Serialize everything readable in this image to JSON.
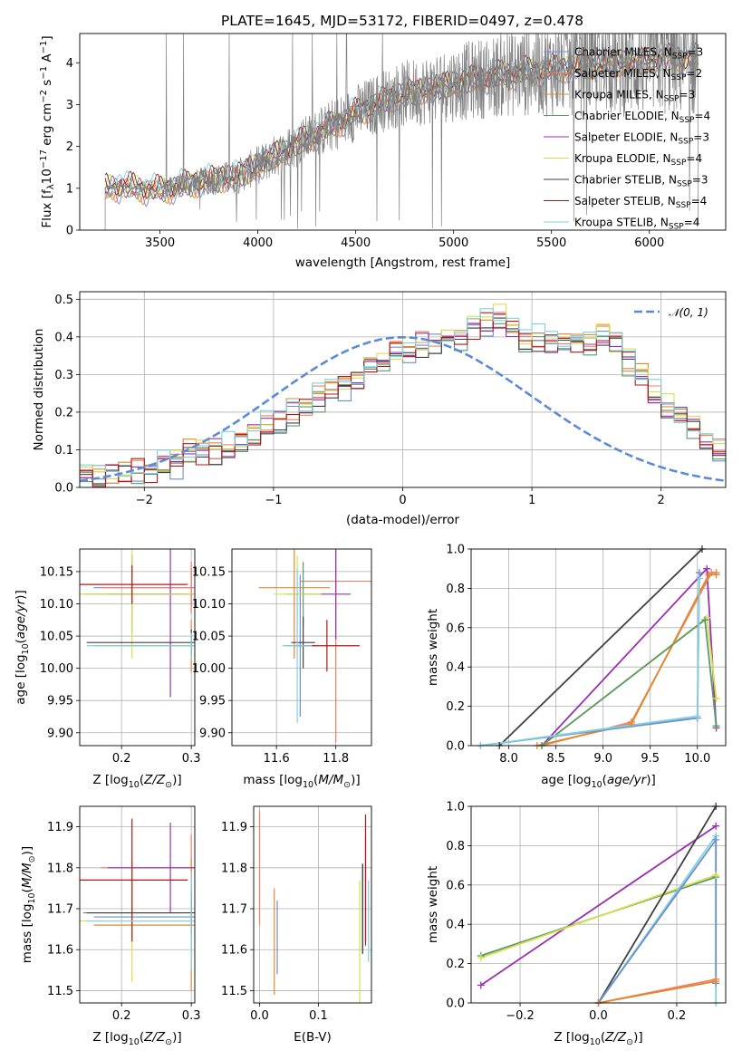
{
  "title": "PLATE=1645, MJD=53172, FIBERID=0497, z=0.478",
  "colors": {
    "Chabrier MILES": "#6e8ecf",
    "Salpeter MILES": "#f08060",
    "Kroupa MILES": "#e08a30",
    "Chabrier ELODIE": "#5a9a6a",
    "Salpeter ELODIE": "#9a30b0",
    "Kroupa ELODIE": "#d6e04a",
    "Chabrier STELIB": "#404040",
    "Salpeter STELIB": "#b01818",
    "Kroupa STELIB": "#80d0e0",
    "gaussian": "#5b8bd6",
    "data": "#808080"
  },
  "legend_spectrum": [
    {
      "model": "Chabrier MILES",
      "label": "Chabrier MILES, N",
      "sub": "SSP",
      "tail": "=3"
    },
    {
      "model": "Salpeter MILES",
      "label": "Salpeter MILES, N",
      "sub": "SSP",
      "tail": "=2"
    },
    {
      "model": "Kroupa MILES",
      "label": "Kroupa MILES, N",
      "sub": "SSP",
      "tail": "=3"
    },
    {
      "model": "Chabrier ELODIE",
      "label": "Chabrier ELODIE, N",
      "sub": "SSP",
      "tail": "=4"
    },
    {
      "model": "Salpeter ELODIE",
      "label": "Salpeter ELODIE, N",
      "sub": "SSP",
      "tail": "=3"
    },
    {
      "model": "Kroupa ELODIE",
      "label": "Kroupa ELODIE, N",
      "sub": "SSP",
      "tail": "=4"
    },
    {
      "model": "Chabrier STELIB",
      "label": "Chabrier STELIB, N",
      "sub": "SSP",
      "tail": "=3"
    },
    {
      "model": "Salpeter STELIB",
      "label": "Salpeter STELIB, N",
      "sub": "SSP",
      "tail": "=4"
    },
    {
      "model": "Kroupa STELIB",
      "label": "Kroupa STELIB, N",
      "sub": "SSP",
      "tail": "=4"
    }
  ],
  "legend_hist": "𝒩(0, 1)",
  "chart_data": [
    {
      "id": "spectrum",
      "type": "line",
      "xlabel": "wavelength [Angstrom, rest frame]",
      "ylabel": "Flux [f_λ 10^-17 erg cm^-2 s^-1 A^-1]",
      "xlim": [
        3090,
        6390
      ],
      "ylim": [
        0,
        4.7
      ],
      "xticks": [
        3500,
        4000,
        4500,
        5000,
        5500,
        6000
      ],
      "yticks": [
        0,
        1,
        2,
        3,
        4
      ],
      "grid": false,
      "legend": "top-right",
      "continuum_points": {
        "x": [
          3220,
          3300,
          3500,
          3700,
          3900,
          4100,
          4300,
          4500,
          4700,
          4900,
          5100,
          5300,
          5500,
          5700,
          5900,
          6100,
          6250
        ],
        "y": [
          1.0,
          1.05,
          0.95,
          1.15,
          1.3,
          1.8,
          2.3,
          2.8,
          3.2,
          3.4,
          3.6,
          3.75,
          3.85,
          3.95,
          4.0,
          4.1,
          4.1
        ]
      },
      "data_start": 3220,
      "data_end": 6250
    },
    {
      "id": "histogram",
      "type": "histogram",
      "xlabel": "(data-model)/error",
      "ylabel": "Normed distribution",
      "xlim": [
        -2.5,
        2.5
      ],
      "ylim": [
        0,
        0.52
      ],
      "xticks": [
        -2,
        -1,
        0,
        1,
        2
      ],
      "yticks": [
        0.0,
        0.1,
        0.2,
        0.3,
        0.4,
        0.5
      ],
      "grid": true,
      "legend": "top-right",
      "bin_edges_start": -2.5,
      "bin_width": 0.1,
      "counts": [
        0.03,
        0.03,
        0.04,
        0.04,
        0.05,
        0.04,
        0.06,
        0.06,
        0.09,
        0.09,
        0.1,
        0.11,
        0.12,
        0.14,
        0.17,
        0.18,
        0.2,
        0.21,
        0.24,
        0.26,
        0.27,
        0.29,
        0.32,
        0.34,
        0.36,
        0.37,
        0.38,
        0.39,
        0.39,
        0.4,
        0.42,
        0.44,
        0.45,
        0.42,
        0.4,
        0.4,
        0.39,
        0.38,
        0.38,
        0.39,
        0.41,
        0.38,
        0.33,
        0.29,
        0.25,
        0.21,
        0.19,
        0.16,
        0.13,
        0.11
      ],
      "gaussian": {
        "mu": 0,
        "sigma": 1
      }
    },
    {
      "id": "age-vs-Z",
      "type": "errorbar",
      "xlabel": "Z [log10(Z/Z⊙)]",
      "ylabel": "age [log10(age/yr)]",
      "xlim": [
        0.14,
        0.305
      ],
      "ylim": [
        9.88,
        10.185
      ],
      "xticks": [
        0.2,
        0.3
      ],
      "yticks": [
        9.9,
        9.95,
        10.0,
        10.05,
        10.1,
        10.15
      ],
      "grid": true,
      "points": [
        {
          "model": "Chabrier MILES",
          "x": 0.3,
          "y": 10.125,
          "xerr": 0.14,
          "yerr": 0.03
        },
        {
          "model": "Salpeter MILES",
          "x": 0.3,
          "y": 10.125,
          "xerr": 0.13,
          "yerr": 0.04
        },
        {
          "model": "Kroupa MILES",
          "x": 0.3,
          "y": 10.035,
          "xerr": 0.14,
          "yerr": 0.04
        },
        {
          "model": "Chabrier ELODIE",
          "x": 0.215,
          "y": 10.115,
          "xerr": 0.07,
          "yerr": 0.06
        },
        {
          "model": "Salpeter ELODIE",
          "x": 0.27,
          "y": 10.115,
          "xerr": 0.09,
          "yerr": 0.16
        },
        {
          "model": "Kroupa ELODIE",
          "x": 0.215,
          "y": 10.115,
          "xerr": 0.09,
          "yerr": 0.1
        },
        {
          "model": "Chabrier STELIB",
          "x": 0.3,
          "y": 10.04,
          "xerr": 0.15,
          "yerr": 0.02
        },
        {
          "model": "Salpeter STELIB",
          "x": 0.215,
          "y": 10.13,
          "xerr": 0.08,
          "yerr": 0.03
        },
        {
          "model": "Kroupa STELIB",
          "x": 0.3,
          "y": 10.035,
          "xerr": 0.15,
          "yerr": 0.02
        }
      ]
    },
    {
      "id": "age-vs-mass",
      "type": "errorbar",
      "xlabel": "mass [log10(M/M⊙)]",
      "ylabel": "",
      "xlim": [
        11.45,
        11.92
      ],
      "ylim": [
        9.88,
        10.185
      ],
      "xticks": [
        11.6,
        11.8
      ],
      "yticks": [
        9.9,
        9.95,
        10.0,
        10.05,
        10.1,
        10.15
      ],
      "grid": true,
      "points": [
        {
          "model": "Chabrier MILES",
          "x": 11.68,
          "y": 10.035,
          "xerr": 0.05,
          "yerr": 0.11
        },
        {
          "model": "Salpeter MILES",
          "x": 11.8,
          "y": 10.135,
          "xerr": 0.12,
          "yerr": 0.25
        },
        {
          "model": "Kroupa MILES",
          "x": 11.66,
          "y": 10.125,
          "xerr": 0.12,
          "yerr": 0.11
        },
        {
          "model": "Chabrier ELODIE",
          "x": 11.69,
          "y": 10.115,
          "xerr": 0.06,
          "yerr": 0.05
        },
        {
          "model": "Salpeter ELODIE",
          "x": 11.8,
          "y": 10.115,
          "xerr": 0.05,
          "yerr": 0.07
        },
        {
          "model": "Kroupa ELODIE",
          "x": 11.67,
          "y": 10.115,
          "xerr": 0.08,
          "yerr": 0.06
        },
        {
          "model": "Chabrier STELIB",
          "x": 11.69,
          "y": 10.04,
          "xerr": 0.04,
          "yerr": 0.04
        },
        {
          "model": "Salpeter STELIB",
          "x": 11.77,
          "y": 10.035,
          "xerr": 0.11,
          "yerr": 0.04
        },
        {
          "model": "Kroupa STELIB",
          "x": 11.67,
          "y": 10.035,
          "xerr": 0.05,
          "yerr": 0.12
        }
      ]
    },
    {
      "id": "mass-vs-Z",
      "type": "errorbar",
      "xlabel": "Z [log10(Z/Z⊙)]",
      "ylabel": "mass [log10(M/M⊙)]",
      "xlim": [
        0.14,
        0.305
      ],
      "ylim": [
        11.47,
        11.95
      ],
      "xticks": [
        0.2,
        0.3
      ],
      "yticks": [
        11.5,
        11.6,
        11.7,
        11.8,
        11.9
      ],
      "grid": true,
      "points": [
        {
          "model": "Chabrier MILES",
          "x": 0.3,
          "y": 11.68,
          "xerr": 0.14,
          "yerr": 0.07
        },
        {
          "model": "Salpeter MILES",
          "x": 0.3,
          "y": 11.8,
          "xerr": 0.13,
          "yerr": 0.08
        },
        {
          "model": "Kroupa MILES",
          "x": 0.3,
          "y": 11.66,
          "xerr": 0.14,
          "yerr": 0.16
        },
        {
          "model": "Chabrier ELODIE",
          "x": 0.215,
          "y": 11.69,
          "xerr": 0.07,
          "yerr": 0.06
        },
        {
          "model": "Salpeter ELODIE",
          "x": 0.27,
          "y": 11.8,
          "xerr": 0.09,
          "yerr": 0.11
        },
        {
          "model": "Kroupa ELODIE",
          "x": 0.215,
          "y": 11.67,
          "xerr": 0.09,
          "yerr": 0.15
        },
        {
          "model": "Chabrier STELIB",
          "x": 0.3,
          "y": 11.69,
          "xerr": 0.15,
          "yerr": 0.05
        },
        {
          "model": "Salpeter STELIB",
          "x": 0.215,
          "y": 11.77,
          "xerr": 0.08,
          "yerr": 0.15
        },
        {
          "model": "Kroupa STELIB",
          "x": 0.3,
          "y": 11.67,
          "xerr": 0.15,
          "yerr": 0.12
        }
      ]
    },
    {
      "id": "mass-vs-EBV",
      "type": "errorbar",
      "xlabel": "E(B-V)",
      "ylabel": "",
      "xlim": [
        -0.01,
        0.19
      ],
      "ylim": [
        11.47,
        11.95
      ],
      "xticks": [
        0.0,
        0.1
      ],
      "yticks": [
        11.5,
        11.6,
        11.7,
        11.8,
        11.9
      ],
      "grid": true,
      "points": [
        {
          "model": "Chabrier MILES",
          "x": 0.03,
          "y": 11.63,
          "xerr": 0,
          "yerr": 0.09
        },
        {
          "model": "Salpeter MILES",
          "x": 0.0,
          "y": 11.8,
          "xerr": 0,
          "yerr": 0.14
        },
        {
          "model": "Kroupa MILES",
          "x": 0.025,
          "y": 11.62,
          "xerr": 0,
          "yerr": 0.13
        },
        {
          "model": "Chabrier ELODIE",
          "x": 0.175,
          "y": 11.7,
          "xerr": 0,
          "yerr": 0.11
        },
        {
          "model": "Salpeter ELODIE",
          "x": 0.18,
          "y": 11.75,
          "xerr": 0,
          "yerr": 0.13
        },
        {
          "model": "Kroupa ELODIE",
          "x": 0.17,
          "y": 11.62,
          "xerr": 0,
          "yerr": 0.15
        },
        {
          "model": "Chabrier STELIB",
          "x": 0.175,
          "y": 11.7,
          "xerr": 0,
          "yerr": 0.11
        },
        {
          "model": "Salpeter STELIB",
          "x": 0.18,
          "y": 11.77,
          "xerr": 0,
          "yerr": 0.16
        },
        {
          "model": "Kroupa STELIB",
          "x": 0.185,
          "y": 11.67,
          "xerr": 0,
          "yerr": 0.1
        }
      ]
    },
    {
      "id": "massweight-vs-age",
      "type": "line",
      "xlabel": "age [log10(age/yr)]",
      "ylabel": "mass weight",
      "xlim": [
        7.6,
        10.3
      ],
      "ylim": [
        0,
        1.0
      ],
      "xticks": [
        8.0,
        8.5,
        9.0,
        9.5,
        10.0
      ],
      "yticks": [
        0.0,
        0.2,
        0.4,
        0.6,
        0.8,
        1.0
      ],
      "grid": true,
      "series": [
        {
          "model": "Chabrier STELIB",
          "x": [
            7.9,
            10.05
          ],
          "y": [
            0.0,
            1.0
          ]
        },
        {
          "model": "Salpeter ELODIE",
          "x": [
            8.35,
            10.1,
            10.2
          ],
          "y": [
            0.0,
            0.9,
            0.09
          ]
        },
        {
          "model": "Salpeter MILES",
          "x": [
            8.35,
            9.3,
            10.15,
            10.2
          ],
          "y": [
            0.0,
            0.12,
            0.88,
            0.88
          ]
        },
        {
          "model": "Kroupa MILES",
          "x": [
            8.3,
            9.3,
            10.12,
            10.2
          ],
          "y": [
            0.0,
            0.11,
            0.87,
            0.87
          ]
        },
        {
          "model": "Kroupa ELODIE",
          "x": [
            8.35,
            10.1,
            10.2
          ],
          "y": [
            0.0,
            0.65,
            0.24
          ]
        },
        {
          "model": "Chabrier ELODIE",
          "x": [
            8.35,
            10.08,
            10.2
          ],
          "y": [
            0.0,
            0.64,
            0.1
          ]
        },
        {
          "model": "Chabrier MILES",
          "x": [
            7.7,
            10.0,
            10.02
          ],
          "y": [
            0.0,
            0.14,
            0.88
          ]
        },
        {
          "model": "Kroupa STELIB",
          "x": [
            7.7,
            10.0,
            10.02
          ],
          "y": [
            0.0,
            0.15,
            0.85
          ]
        }
      ]
    },
    {
      "id": "massweight-vs-Z",
      "type": "line",
      "xlabel": "Z [log10(Z/Z⊙)]",
      "ylabel": "mass weight",
      "xlim": [
        -0.325,
        0.325
      ],
      "ylim": [
        0,
        1.0
      ],
      "xticks": [
        -0.2,
        0.0,
        0.2
      ],
      "yticks": [
        0.0,
        0.2,
        0.4,
        0.6,
        0.8,
        1.0
      ],
      "grid": true,
      "series": [
        {
          "model": "Salpeter ELODIE",
          "x": [
            -0.3,
            0.3
          ],
          "y": [
            0.09,
            0.9
          ]
        },
        {
          "model": "Chabrier ELODIE",
          "x": [
            -0.3,
            0.3
          ],
          "y": [
            0.24,
            0.64
          ]
        },
        {
          "model": "Kroupa ELODIE",
          "x": [
            -0.3,
            0.3
          ],
          "y": [
            0.23,
            0.65
          ]
        },
        {
          "model": "Chabrier STELIB",
          "x": [
            0.0,
            0.3
          ],
          "y": [
            0.0,
            1.0
          ]
        },
        {
          "model": "Kroupa STELIB",
          "x": [
            0.0,
            0.3,
            0.3
          ],
          "y": [
            0.0,
            0.85,
            0.0
          ]
        },
        {
          "model": "Chabrier MILES",
          "x": [
            0.0,
            0.3,
            0.3
          ],
          "y": [
            0.0,
            0.83,
            0.1
          ]
        },
        {
          "model": "Salpeter MILES",
          "x": [
            0.0,
            0.3
          ],
          "y": [
            0.0,
            0.12
          ]
        },
        {
          "model": "Kroupa MILES",
          "x": [
            0.0,
            0.3
          ],
          "y": [
            0.0,
            0.11
          ]
        }
      ]
    }
  ]
}
